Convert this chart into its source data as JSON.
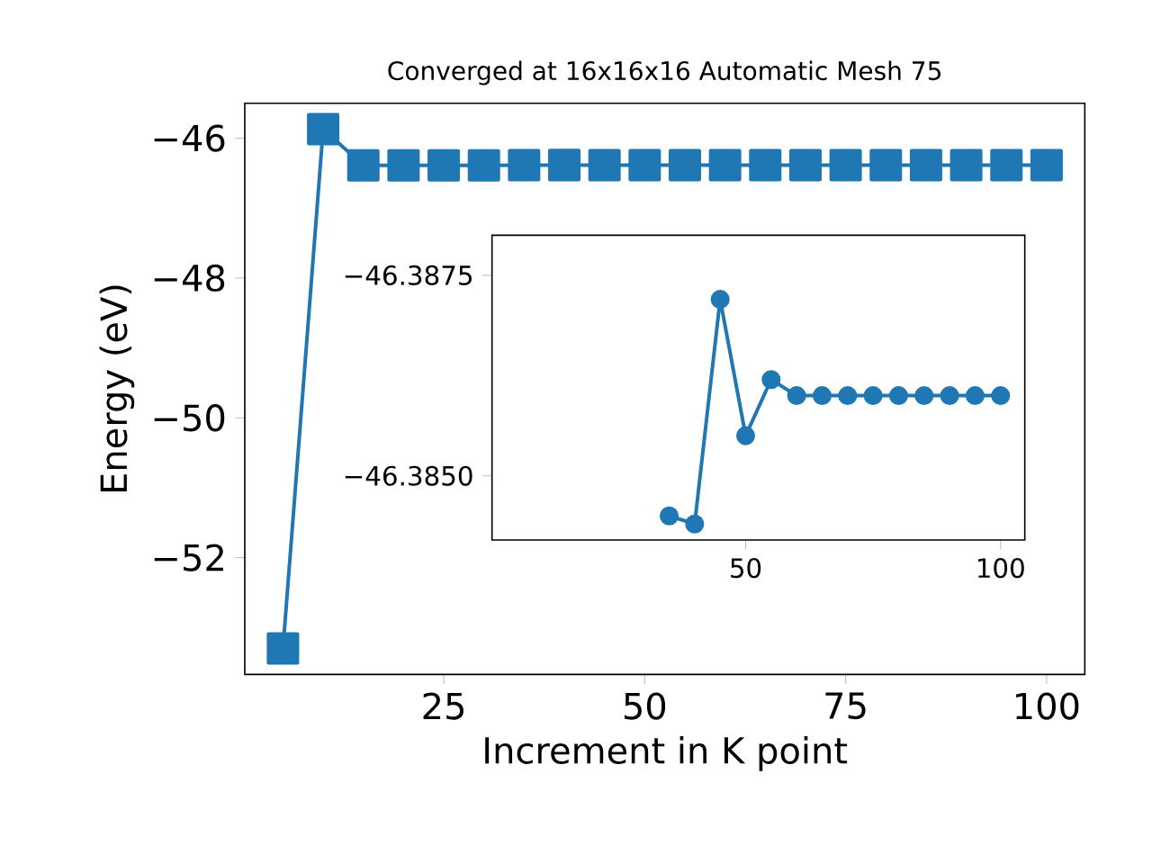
{
  "chart_data": [
    {
      "type": "line",
      "title": "Converged at 16x16x16 Automatic Mesh 75",
      "xlabel": "Increment in K point",
      "ylabel": "Energy (eV)",
      "x": [
        5,
        10,
        15,
        20,
        25,
        30,
        35,
        40,
        45,
        50,
        55,
        60,
        65,
        70,
        75,
        80,
        85,
        90,
        95,
        100
      ],
      "values": [
        -53.3,
        -45.87,
        -46.39,
        -46.39,
        -46.39,
        -46.388,
        -46.3845,
        -46.3844,
        -46.3872,
        -46.3855,
        -46.3862,
        -46.386,
        -46.386,
        -46.386,
        -46.386,
        -46.386,
        -46.386,
        -46.386,
        -46.386,
        -46.386
      ],
      "color": "#1f77b4",
      "marker": "square",
      "xlim": [
        0.25,
        104.75
      ],
      "ylim": [
        -53.67,
        -45.5
      ],
      "xticks": [
        25,
        50,
        75,
        100
      ],
      "yticks": [
        {
          "value": -52,
          "label": "−52"
        },
        {
          "value": -50,
          "label": "−50"
        },
        {
          "value": -48,
          "label": "−48"
        },
        {
          "value": -46,
          "label": "−46"
        }
      ]
    },
    {
      "type": "line",
      "x": [
        35,
        40,
        45,
        50,
        55,
        60,
        65,
        70,
        75,
        80,
        85,
        90,
        95,
        100
      ],
      "values": [
        -46.3845,
        -46.3844,
        -46.3872,
        -46.3855,
        -46.3862,
        -46.386,
        -46.386,
        -46.386,
        -46.386,
        -46.386,
        -46.386,
        -46.386,
        -46.386,
        -46.386
      ],
      "color": "#1f77b4",
      "marker": "circle",
      "xlim": [
        0.25,
        104.75
      ],
      "ylim": [
        -46.3842,
        -46.388
      ],
      "xticks": [
        50,
        100
      ],
      "yticks": [
        {
          "value": -46.3875,
          "label": "−46.3875"
        },
        {
          "value": -46.385,
          "label": "−46.3850"
        }
      ]
    }
  ]
}
